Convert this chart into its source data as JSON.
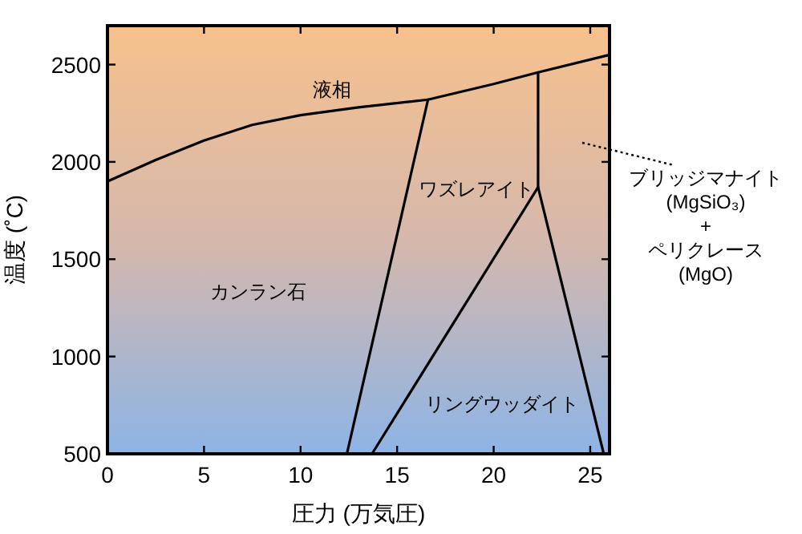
{
  "chart_data": {
    "type": "line",
    "xlabel": "圧力 (万気圧)",
    "ylabel": "温度 (˚C)",
    "xlim": [
      0,
      26
    ],
    "ylim": [
      500,
      2700
    ],
    "xticks": [
      0,
      5,
      10,
      15,
      20,
      25
    ],
    "yticks": [
      500,
      1000,
      1500,
      2000,
      2500
    ],
    "grid": false,
    "marker": "none",
    "line_style": "solid",
    "series": [
      {
        "color": "#000000",
        "x": [
          0,
          2.5,
          5,
          7.5,
          10,
          13,
          16.6,
          20,
          22.3,
          26
        ],
        "values": [
          1900,
          2010,
          2110,
          2190,
          2240,
          2280,
          2320,
          2400,
          2460,
          2550
        ]
      },
      {
        "color": "#000000",
        "x": [
          16.6,
          12.4
        ],
        "values": [
          2320,
          500
        ]
      },
      {
        "color": "#000000",
        "x": [
          22.3,
          22.3,
          25.7
        ],
        "values": [
          2460,
          1870,
          500
        ]
      },
      {
        "color": "#000000",
        "x": [
          22.3,
          13.7
        ],
        "values": [
          1870,
          500
        ]
      }
    ],
    "annotations": [
      "液相",
      "カンラン石",
      "ワズレアイト",
      "リングウッダイト",
      "ブリッジマナイト\n(MgSiO₃)\n+\nペリクレース\n(MgO)"
    ]
  }
}
